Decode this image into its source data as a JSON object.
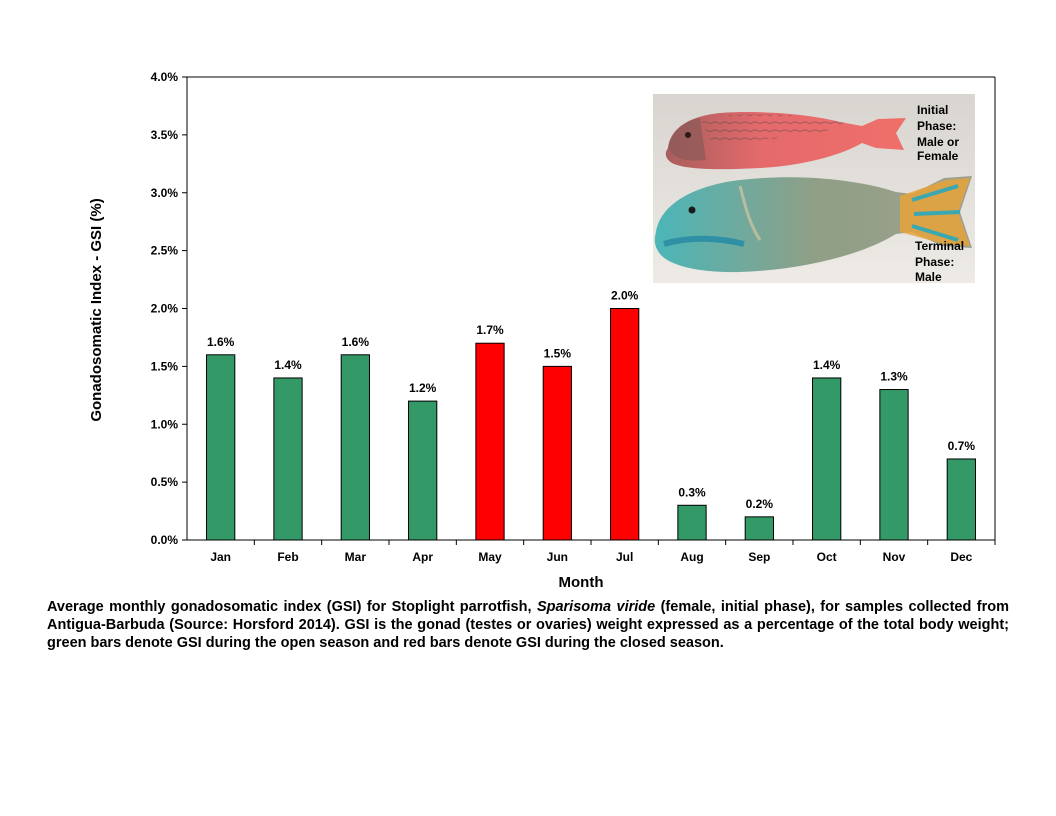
{
  "chart_data": {
    "type": "bar",
    "categories": [
      "Jan",
      "Feb",
      "Mar",
      "Apr",
      "May",
      "Jun",
      "Jul",
      "Aug",
      "Sep",
      "Oct",
      "Nov",
      "Dec"
    ],
    "values": [
      1.6,
      1.4,
      1.6,
      1.2,
      1.7,
      1.5,
      2.0,
      0.3,
      0.2,
      1.4,
      1.3,
      0.7
    ],
    "value_labels": [
      "1.6%",
      "1.4%",
      "1.6%",
      "1.2%",
      "1.7%",
      "1.5%",
      "2.0%",
      "0.3%",
      "0.2%",
      "1.4%",
      "1.3%",
      "0.7%"
    ],
    "season": [
      "open",
      "open",
      "open",
      "open",
      "closed",
      "closed",
      "closed",
      "open",
      "open",
      "open",
      "open",
      "open"
    ],
    "colors": {
      "open": "#339966",
      "closed": "#ff0000"
    },
    "xlabel": "Month",
    "ylabel": "Gonadosomatic Index - GSI (%)",
    "ylim": [
      0,
      4.0
    ],
    "yticks": [
      0.0,
      0.5,
      1.0,
      1.5,
      2.0,
      2.5,
      3.0,
      3.5,
      4.0
    ],
    "ytick_labels": [
      "0.0%",
      "0.5%",
      "1.0%",
      "1.5%",
      "2.0%",
      "2.5%",
      "3.0%",
      "3.5%",
      "4.0%"
    ],
    "grid": false,
    "legend": "none"
  },
  "inset": {
    "initial_phase_lines": [
      "Initial",
      "Phase:",
      "Male or",
      "Female"
    ],
    "terminal_phase_lines": [
      "Terminal",
      "Phase:",
      "Male"
    ]
  },
  "caption": {
    "part1": "Average monthly gonadosomatic index (GSI) for Stoplight parrotfish, ",
    "species": "Sparisoma viride",
    "part2": " (female, initial phase), for samples collected from Antigua-Barbuda (Source: Horsford 2014). GSI is the gonad (testes or ovaries) weight expressed as a percentage of the total body weight; green bars denote GSI during the open season and red bars denote GSI during the closed season."
  }
}
